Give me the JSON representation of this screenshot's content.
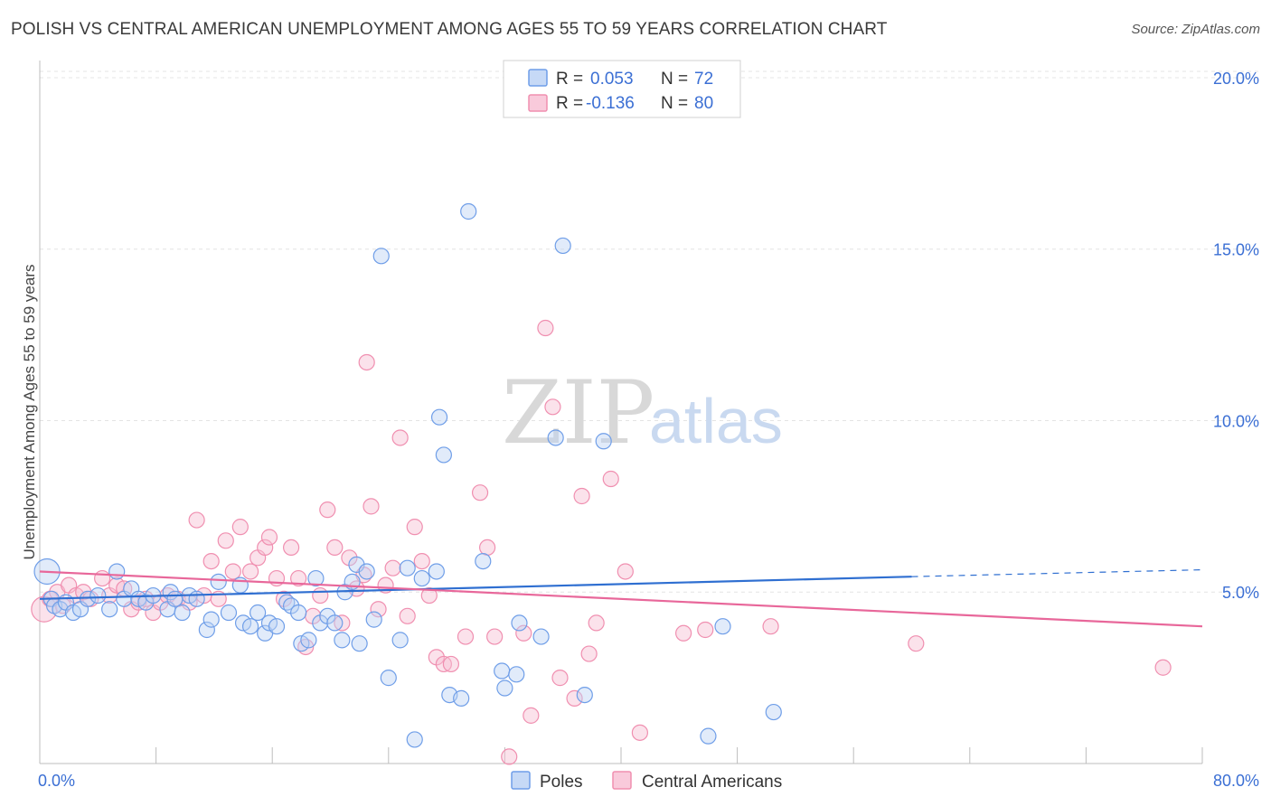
{
  "title": "POLISH VS CENTRAL AMERICAN UNEMPLOYMENT AMONG AGES 55 TO 59 YEARS CORRELATION CHART",
  "source": "Source: ZipAtlas.com",
  "colors": {
    "poles": "#6f9ee8",
    "poles_line": "#2f6fd1",
    "central_americans": "#f08fb0",
    "central_americans_line": "#e8679a",
    "tick_text": "#3b6fd4"
  },
  "legend": {
    "rows": [
      {
        "r_label": "R =",
        "r_value": "0.053",
        "n_label": "N =",
        "n_value": "72"
      },
      {
        "r_label": "R =",
        "r_value": "-0.136",
        "n_label": "N =",
        "n_value": "80"
      }
    ]
  },
  "watermark": {
    "part1": "ZIP",
    "part2": "atlas"
  },
  "chart_data": {
    "type": "scatter",
    "xlabel": "",
    "ylabel": "Unemployment Among Ages 55 to 59 years",
    "xlim": [
      0,
      80
    ],
    "ylim": [
      0,
      20.5
    ],
    "x_tick_labels": [
      "0.0%",
      "80.0%"
    ],
    "y_ticks": [
      5,
      10,
      15,
      20
    ],
    "y_tick_labels": [
      "5.0%",
      "10.0%",
      "15.0%",
      "20.0%"
    ],
    "grid": "horizontal dashed",
    "legend_position": "top-center",
    "series": [
      {
        "name": "Poles",
        "trend": {
          "x": [
            0,
            60
          ],
          "y": [
            4.8,
            5.45
          ],
          "dashed_extension_to_x": 80,
          "dashed_extension_y": 5.65
        },
        "points": [
          [
            0.5,
            5.6
          ],
          [
            0.8,
            4.8
          ],
          [
            1.0,
            4.6
          ],
          [
            1.4,
            4.5
          ],
          [
            1.8,
            4.7
          ],
          [
            2.3,
            4.4
          ],
          [
            2.8,
            4.5
          ],
          [
            3.3,
            4.8
          ],
          [
            4.0,
            4.9
          ],
          [
            4.8,
            4.5
          ],
          [
            5.3,
            5.6
          ],
          [
            5.8,
            4.8
          ],
          [
            6.3,
            5.1
          ],
          [
            6.8,
            4.8
          ],
          [
            7.3,
            4.7
          ],
          [
            7.8,
            4.9
          ],
          [
            8.8,
            4.5
          ],
          [
            9.0,
            5.0
          ],
          [
            9.3,
            4.8
          ],
          [
            9.8,
            4.4
          ],
          [
            10.3,
            4.9
          ],
          [
            10.8,
            4.8
          ],
          [
            11.5,
            3.9
          ],
          [
            11.8,
            4.2
          ],
          [
            12.3,
            5.3
          ],
          [
            13.0,
            4.4
          ],
          [
            13.8,
            5.2
          ],
          [
            14.0,
            4.1
          ],
          [
            14.5,
            4.0
          ],
          [
            15.0,
            4.4
          ],
          [
            15.5,
            3.8
          ],
          [
            15.8,
            4.1
          ],
          [
            16.3,
            4.0
          ],
          [
            17.0,
            4.7
          ],
          [
            17.3,
            4.6
          ],
          [
            17.8,
            4.4
          ],
          [
            18.0,
            3.5
          ],
          [
            18.5,
            3.6
          ],
          [
            19.0,
            5.4
          ],
          [
            19.3,
            4.1
          ],
          [
            19.8,
            4.3
          ],
          [
            20.3,
            4.1
          ],
          [
            20.8,
            3.6
          ],
          [
            21.0,
            5.0
          ],
          [
            21.5,
            5.3
          ],
          [
            21.8,
            5.8
          ],
          [
            22.0,
            3.5
          ],
          [
            22.5,
            5.6
          ],
          [
            23.0,
            4.2
          ],
          [
            23.5,
            14.8
          ],
          [
            24.0,
            2.5
          ],
          [
            24.8,
            3.6
          ],
          [
            25.3,
            5.7
          ],
          [
            25.8,
            0.7
          ],
          [
            26.3,
            5.4
          ],
          [
            27.3,
            5.6
          ],
          [
            27.5,
            10.1
          ],
          [
            27.8,
            9.0
          ],
          [
            28.2,
            2.0
          ],
          [
            29.0,
            1.9
          ],
          [
            29.5,
            16.1
          ],
          [
            30.5,
            5.9
          ],
          [
            31.8,
            2.7
          ],
          [
            32.0,
            2.2
          ],
          [
            32.8,
            2.6
          ],
          [
            33.0,
            4.1
          ],
          [
            34.5,
            3.7
          ],
          [
            35.5,
            9.5
          ],
          [
            36.0,
            15.1
          ],
          [
            37.5,
            2.0
          ],
          [
            38.8,
            9.4
          ],
          [
            46.0,
            0.8
          ],
          [
            47.0,
            4.0
          ],
          [
            50.5,
            1.5
          ]
        ]
      },
      {
        "name": "Central Americans",
        "trend": {
          "x": [
            0,
            80
          ],
          "y": [
            5.6,
            4.0
          ]
        },
        "points": [
          [
            0.3,
            4.5
          ],
          [
            0.7,
            4.8
          ],
          [
            1.2,
            5.0
          ],
          [
            1.6,
            4.6
          ],
          [
            2.0,
            5.2
          ],
          [
            2.5,
            4.9
          ],
          [
            3.0,
            5.0
          ],
          [
            3.5,
            4.8
          ],
          [
            4.3,
            5.4
          ],
          [
            4.8,
            4.9
          ],
          [
            5.3,
            5.2
          ],
          [
            5.8,
            5.1
          ],
          [
            6.3,
            4.5
          ],
          [
            6.8,
            4.7
          ],
          [
            7.3,
            4.8
          ],
          [
            7.8,
            4.4
          ],
          [
            8.3,
            4.7
          ],
          [
            8.8,
            4.9
          ],
          [
            9.5,
            4.8
          ],
          [
            10.3,
            4.7
          ],
          [
            10.8,
            7.1
          ],
          [
            11.3,
            4.9
          ],
          [
            11.8,
            5.9
          ],
          [
            12.3,
            4.8
          ],
          [
            12.8,
            6.5
          ],
          [
            13.3,
            5.6
          ],
          [
            13.8,
            6.9
          ],
          [
            14.5,
            5.6
          ],
          [
            15.0,
            6.0
          ],
          [
            15.5,
            6.3
          ],
          [
            15.8,
            6.6
          ],
          [
            16.3,
            5.4
          ],
          [
            16.8,
            4.8
          ],
          [
            17.3,
            6.3
          ],
          [
            17.8,
            5.4
          ],
          [
            18.3,
            3.4
          ],
          [
            18.8,
            4.3
          ],
          [
            19.3,
            4.9
          ],
          [
            19.8,
            7.4
          ],
          [
            20.3,
            6.3
          ],
          [
            20.8,
            4.1
          ],
          [
            21.3,
            6.0
          ],
          [
            21.8,
            5.1
          ],
          [
            22.3,
            5.5
          ],
          [
            22.5,
            11.7
          ],
          [
            22.8,
            7.5
          ],
          [
            23.3,
            4.5
          ],
          [
            23.8,
            5.2
          ],
          [
            24.3,
            5.7
          ],
          [
            24.8,
            9.5
          ],
          [
            25.3,
            4.3
          ],
          [
            25.8,
            6.9
          ],
          [
            26.3,
            5.9
          ],
          [
            26.8,
            4.9
          ],
          [
            27.3,
            3.1
          ],
          [
            27.8,
            2.9
          ],
          [
            28.3,
            2.9
          ],
          [
            29.3,
            3.7
          ],
          [
            30.3,
            7.9
          ],
          [
            30.8,
            6.3
          ],
          [
            31.3,
            3.7
          ],
          [
            32.3,
            0.2
          ],
          [
            33.3,
            3.8
          ],
          [
            33.8,
            1.4
          ],
          [
            34.8,
            12.7
          ],
          [
            35.3,
            10.4
          ],
          [
            35.8,
            2.5
          ],
          [
            36.8,
            1.9
          ],
          [
            37.3,
            7.8
          ],
          [
            37.8,
            3.2
          ],
          [
            38.3,
            4.1
          ],
          [
            39.3,
            8.3
          ],
          [
            40.3,
            5.6
          ],
          [
            41.3,
            0.9
          ],
          [
            44.3,
            3.8
          ],
          [
            45.8,
            3.9
          ],
          [
            50.3,
            4.0
          ],
          [
            60.3,
            3.5
          ],
          [
            77.3,
            2.8
          ]
        ]
      }
    ]
  },
  "bottom_legend": [
    "Poles",
    "Central Americans"
  ]
}
